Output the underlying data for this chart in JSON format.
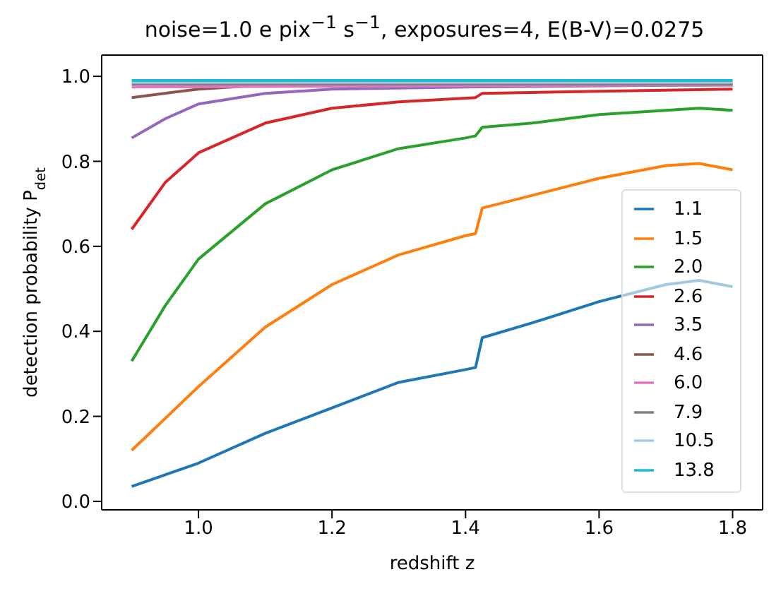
{
  "chart_data": {
    "type": "line",
    "title": "noise=1.0 e pix$^{−1}$ s$^{−1}$, exposures=4, E(B-V)=0.0275",
    "xlabel": "redshift z",
    "ylabel": "detection probability P$_{det}$",
    "xlim": [
      0.855,
      1.845
    ],
    "xticks": [
      {
        "value": 1,
        "label": "1.0"
      },
      1.2,
      1.4,
      1.6,
      1.8
    ],
    "ylim": [
      -0.02,
      1.05
    ],
    "yticks": [
      {
        "value": 0,
        "label": "0.0"
      },
      0.2,
      0.4,
      0.6,
      0.8,
      {
        "value": 1,
        "label": "1.0"
      }
    ],
    "legend": "bottom right",
    "marker": "none",
    "line_style": "solid",
    "series": [
      {
        "name": "1.1",
        "color": "#1f77b4",
        "x": [
          0.9,
          1.0,
          1.1,
          1.2,
          1.3,
          1.4,
          1.415,
          1.425,
          1.5,
          1.6,
          1.7,
          1.75,
          1.8
        ],
        "values": [
          0.035,
          0.09,
          0.16,
          0.22,
          0.28,
          0.31,
          0.315,
          0.385,
          0.42,
          0.47,
          0.51,
          0.52,
          0.505
        ]
      },
      {
        "name": "1.5",
        "color": "#ff7f0e",
        "x": [
          0.9,
          1.0,
          1.1,
          1.2,
          1.3,
          1.4,
          1.415,
          1.425,
          1.5,
          1.6,
          1.7,
          1.75,
          1.8
        ],
        "values": [
          0.12,
          0.27,
          0.41,
          0.51,
          0.58,
          0.625,
          0.63,
          0.69,
          0.72,
          0.76,
          0.79,
          0.795,
          0.78
        ]
      },
      {
        "name": "2.0",
        "color": "#2ca02c",
        "x": [
          0.9,
          0.95,
          1.0,
          1.1,
          1.2,
          1.3,
          1.4,
          1.415,
          1.425,
          1.5,
          1.6,
          1.7,
          1.75,
          1.8
        ],
        "values": [
          0.33,
          0.46,
          0.57,
          0.7,
          0.78,
          0.83,
          0.855,
          0.86,
          0.88,
          0.89,
          0.91,
          0.92,
          0.925,
          0.92
        ]
      },
      {
        "name": "2.6",
        "color": "#d62728",
        "x": [
          0.9,
          0.95,
          1.0,
          1.1,
          1.2,
          1.3,
          1.415,
          1.425,
          1.6,
          1.8
        ],
        "values": [
          0.64,
          0.75,
          0.82,
          0.89,
          0.925,
          0.94,
          0.95,
          0.96,
          0.965,
          0.97
        ]
      },
      {
        "name": "3.5",
        "color": "#9467bd",
        "x": [
          0.9,
          0.95,
          1.0,
          1.1,
          1.2,
          1.4,
          1.8
        ],
        "values": [
          0.855,
          0.9,
          0.935,
          0.96,
          0.97,
          0.975,
          0.98
        ]
      },
      {
        "name": "4.6",
        "color": "#8c564b",
        "x": [
          0.9,
          1.0,
          1.1,
          1.8
        ],
        "values": [
          0.95,
          0.97,
          0.98,
          0.98
        ]
      },
      {
        "name": "6.0",
        "color": "#e377c2",
        "x": [
          0.9,
          1.8
        ],
        "values": [
          0.975,
          0.98
        ]
      },
      {
        "name": "7.9",
        "color": "#7f7f7f",
        "x": [
          0.9,
          1.8
        ],
        "values": [
          0.982,
          0.982
        ]
      },
      {
        "name": "10.5",
        "color": "#aec7e8",
        "x": [
          0.9,
          1.8
        ],
        "values": [
          0.986,
          0.986
        ]
      },
      {
        "name": "13.8",
        "color": "#17becf",
        "x": [
          0.9,
          1.8
        ],
        "values": [
          0.99,
          0.99
        ]
      }
    ]
  }
}
